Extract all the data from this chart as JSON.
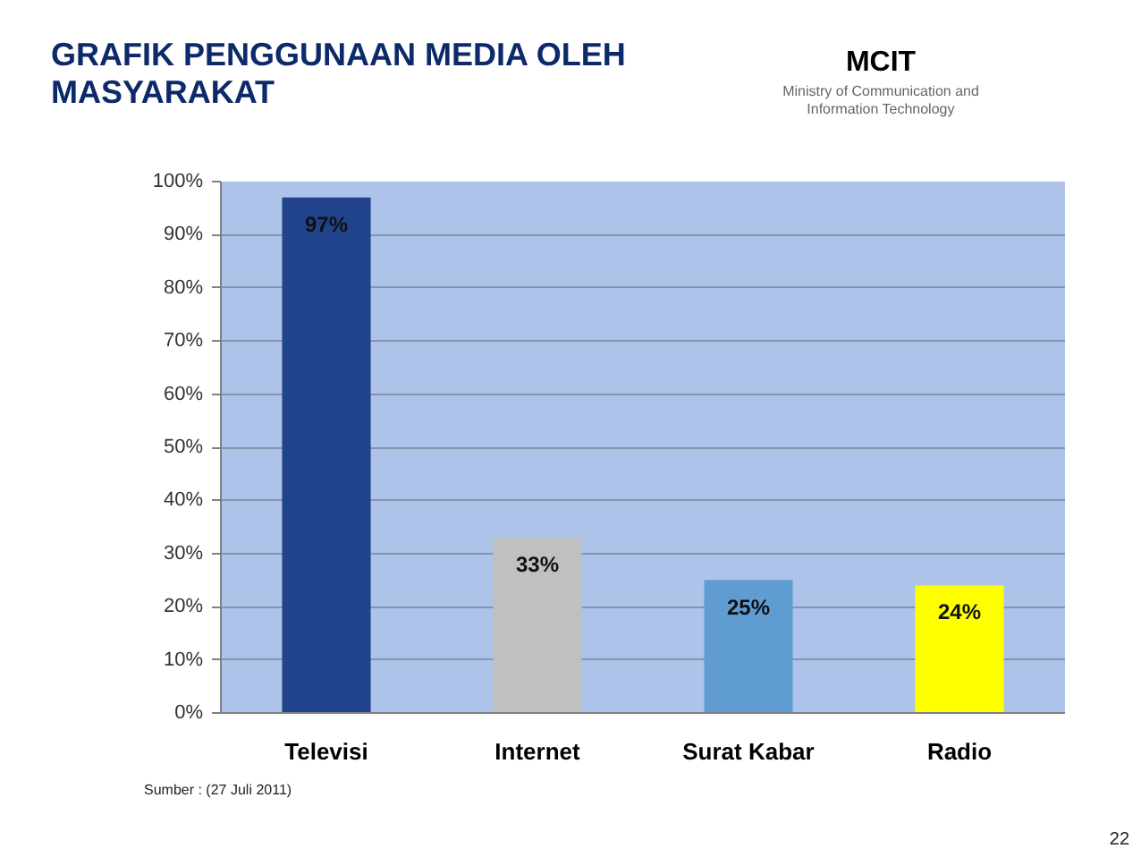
{
  "chart_data": {
    "type": "bar",
    "title": "GRAFIK PENGGUNAAN MEDIA OLEH MASYARAKAT",
    "categories": [
      "Televisi",
      "Internet",
      "Surat Kabar",
      "Radio"
    ],
    "values": [
      97,
      33,
      25,
      24
    ],
    "colors": [
      "#21438b",
      "#c0c0c0",
      "#5f9dd0",
      "#ffff00"
    ],
    "value_labels": [
      "97%",
      "33%",
      "25%",
      "24%"
    ],
    "ylim": [
      0,
      100
    ],
    "yticks": [
      {
        "value": 0,
        "label": "0%"
      },
      {
        "value": 10,
        "label": "10%"
      },
      {
        "value": 20,
        "label": "20%"
      },
      {
        "value": 30,
        "label": "30%"
      },
      {
        "value": 40,
        "label": "40%"
      },
      {
        "value": 50,
        "label": "50%"
      },
      {
        "value": 60,
        "label": "60%"
      },
      {
        "value": 70,
        "label": "70%"
      },
      {
        "value": 80,
        "label": "80%"
      },
      {
        "value": 90,
        "label": "90%"
      },
      {
        "value": 100,
        "label": "100%"
      }
    ],
    "grid": "y",
    "annotations": [
      "MCIT",
      "Ministry of Communication and Information Technology",
      "Sumber : (27 Juli 2011)",
      "22"
    ]
  }
}
